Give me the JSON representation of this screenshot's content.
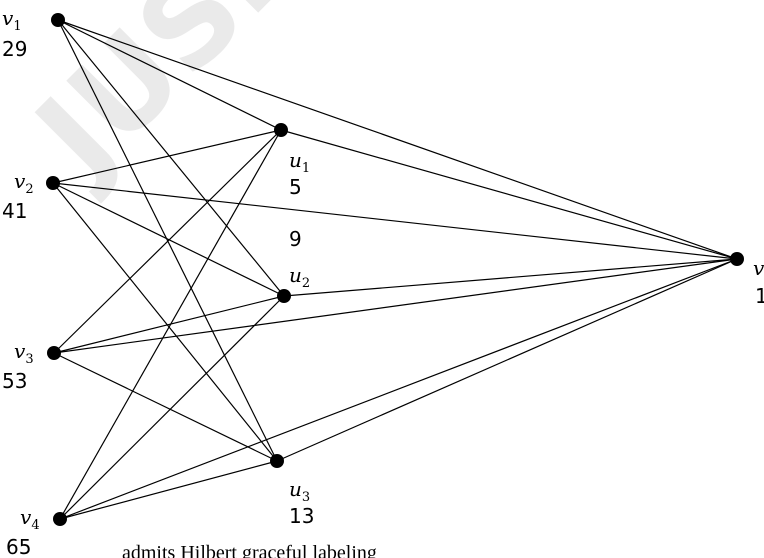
{
  "watermark": {
    "text": "JUSR",
    "color": "#d9d9d9"
  },
  "nodes": [
    {
      "id": "v1",
      "name": "v",
      "sub": "1",
      "value": "29"
    },
    {
      "id": "v2",
      "name": "v",
      "sub": "2",
      "value": "41"
    },
    {
      "id": "v3",
      "name": "v",
      "sub": "3",
      "value": "53"
    },
    {
      "id": "v4",
      "name": "v",
      "sub": "4",
      "value": "65"
    },
    {
      "id": "u1",
      "name": "u",
      "sub": "1",
      "value": "5"
    },
    {
      "id": "u2",
      "name": "u",
      "sub": "2",
      "value": "9"
    },
    {
      "id": "u3",
      "name": "u",
      "sub": "3",
      "value": "13"
    },
    {
      "id": "v5",
      "name": "v",
      "sub": "",
      "value": "1"
    }
  ],
  "edges": [
    [
      "v1",
      "u1"
    ],
    [
      "v1",
      "u2"
    ],
    [
      "v1",
      "u3"
    ],
    [
      "v1",
      "v5"
    ],
    [
      "v2",
      "u1"
    ],
    [
      "v2",
      "u2"
    ],
    [
      "v2",
      "u3"
    ],
    [
      "v2",
      "v5"
    ],
    [
      "v3",
      "u1"
    ],
    [
      "v3",
      "u2"
    ],
    [
      "v3",
      "u3"
    ],
    [
      "v3",
      "v5"
    ],
    [
      "v4",
      "u1"
    ],
    [
      "v4",
      "u2"
    ],
    [
      "v4",
      "u3"
    ],
    [
      "v4",
      "v5"
    ],
    [
      "u1",
      "v5"
    ],
    [
      "u2",
      "v5"
    ],
    [
      "u3",
      "v5"
    ]
  ],
  "caption": "admits Hilbert graceful labeling"
}
